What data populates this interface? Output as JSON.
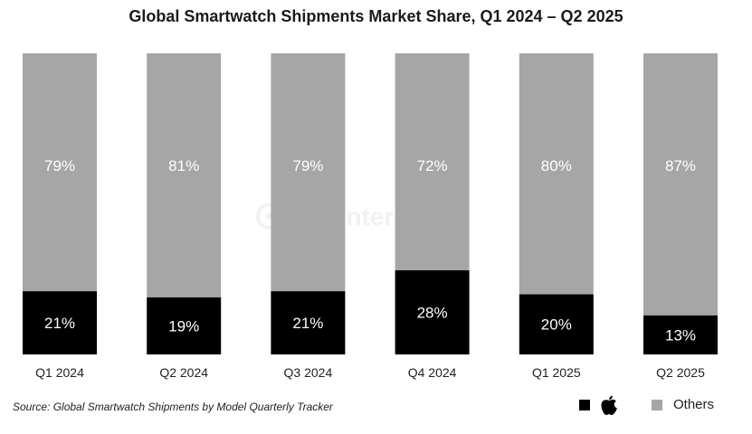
{
  "chart_data": {
    "type": "bar",
    "stacked": true,
    "percent_stacked": true,
    "title": "Global Smartwatch Shipments Market Share, Q1 2024 – Q2 2025",
    "categories": [
      "Q1 2024",
      "Q2 2024",
      "Q3 2024",
      "Q4 2024",
      "Q1 2025",
      "Q2 2025"
    ],
    "series": [
      {
        "name": "Apple",
        "color": "#000000",
        "values": [
          21,
          19,
          21,
          28,
          20,
          13
        ],
        "labels": [
          "21%",
          "19%",
          "21%",
          "28%",
          "20%",
          "13%"
        ]
      },
      {
        "name": "Others",
        "color": "#a6a6a6",
        "values": [
          79,
          81,
          79,
          72,
          80,
          87
        ],
        "labels": [
          "79%",
          "81%",
          "79%",
          "72%",
          "80%",
          "87%"
        ]
      }
    ],
    "ylim": [
      0,
      100
    ],
    "grid": false,
    "legend_position": "bottom-right"
  },
  "legend": {
    "apple_icon": "apple-logo-icon",
    "others_label": "Others"
  },
  "source": "Source: Global Smartwatch Shipments by Model Quarterly Tracker",
  "watermark": "Counterpoint"
}
